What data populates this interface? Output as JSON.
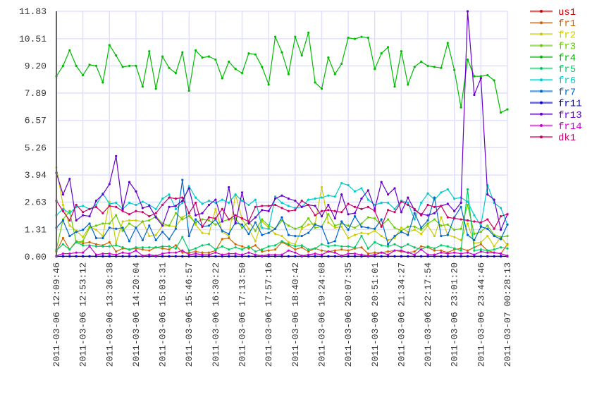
{
  "chart_data": {
    "type": "line",
    "title": "",
    "xlabel": "",
    "ylabel": "",
    "ylim": [
      0,
      11.83
    ],
    "yticks": [
      "0.00",
      "1.31",
      "2.63",
      "3.94",
      "5.26",
      "6.57",
      "7.89",
      "9.20",
      "10.51",
      "11.83"
    ],
    "xticks": [
      "2011-03-06 12:09:46",
      "2011-03-06 12:53:12",
      "2011-03-06 13:36:38",
      "2011-03-06 14:20:04",
      "2011-03-06 15:03:31",
      "2011-03-06 15:46:57",
      "2011-03-06 16:30:22",
      "2011-03-06 17:13:50",
      "2011-03-06 17:57:16",
      "2011-03-06 18:40:42",
      "2011-03-06 19:24:08",
      "2011-03-06 20:07:35",
      "2011-03-06 20:51:01",
      "2011-03-06 21:34:27",
      "2011-03-06 22:17:54",
      "2011-03-06 23:01:20",
      "2011-03-06 23:44:46",
      "2011-03-07 00:28:13"
    ],
    "points_per_tick_interval": 4,
    "grid": true,
    "legend_position": "right",
    "series": [
      {
        "name": "us1",
        "color": "#cc0000",
        "values": [
          0.02,
          0.02,
          0.02,
          0.02,
          0.02,
          0.02,
          0.02,
          0.02,
          0.02,
          0.02,
          0.02,
          0.02,
          0.02,
          0.02,
          0.02,
          0.02,
          0.02,
          0.02,
          0.02,
          0.02,
          0.02,
          0.02,
          0.02,
          0.02,
          0.02,
          0.02,
          0.02,
          0.02,
          0.02,
          0.02,
          0.02,
          0.02,
          0.02,
          0.02,
          0.02,
          0.02,
          0.02,
          0.02,
          0.02,
          0.02,
          0.02,
          0.02,
          0.02,
          0.02,
          0.02,
          0.02,
          0.02,
          0.02,
          0.02,
          0.02,
          0.02,
          0.02,
          0.02,
          0.02,
          0.02,
          0.02,
          0.02,
          0.02,
          0.02,
          0.02,
          0.02,
          0.02,
          0.02,
          0.02,
          0.02,
          0.02,
          0.02,
          0.02,
          0.02
        ]
      },
      {
        "name": "fr1",
        "color": "#cc6600",
        "values": [
          0.25,
          0.9,
          0.35,
          0.75,
          0.65,
          0.7,
          0.6,
          0.55,
          0.7,
          0.25,
          0.4,
          0.35,
          0.4,
          0.35,
          0.3,
          0.45,
          0.4,
          0.35,
          0.55,
          0.2,
          0.2,
          0.25,
          0.2,
          0.2,
          0.3,
          0.85,
          0.9,
          0.6,
          0.5,
          0.4,
          0.55,
          0.25,
          0.3,
          0.35,
          0.7,
          0.55,
          0.35,
          0.45,
          0.25,
          0.4,
          0.3,
          0.25,
          0.3,
          0.35,
          0.3,
          0.4,
          0.45,
          0.15,
          0.2,
          0.2,
          0.25,
          0.3,
          0.25,
          0.2,
          0.25,
          0.5,
          0.45,
          0.3,
          0.3,
          0.2,
          0.35,
          0.4,
          0.3,
          0.45,
          0.6,
          0.3,
          0.2,
          0.15,
          0.6
        ]
      },
      {
        "name": "fr2",
        "color": "#cccc00",
        "values": [
          4.3,
          2.5,
          1.5,
          1.25,
          0.95,
          1.45,
          1.3,
          1.0,
          2.65,
          0.65,
          1.7,
          1.75,
          1.75,
          1.7,
          1.0,
          1.05,
          1.5,
          1.5,
          1.45,
          1.9,
          2.1,
          1.55,
          1.15,
          1.1,
          2.3,
          1.2,
          1.0,
          3.0,
          1.8,
          1.35,
          0.75,
          1.7,
          1.4,
          1.1,
          1.0,
          0.7,
          0.6,
          1.35,
          1.55,
          1.6,
          3.35,
          1.65,
          1.4,
          1.45,
          0.9,
          1.05,
          1.15,
          1.1,
          1.25,
          1.0,
          0.8,
          0.9,
          1.4,
          1.2,
          1.3,
          1.1,
          1.5,
          1.0,
          1.9,
          1.05,
          0.95,
          0.8,
          1.6,
          0.65,
          0.7,
          1.0,
          0.5,
          0.95,
          0.55
        ]
      },
      {
        "name": "fr3",
        "color": "#66cc00",
        "values": [
          0.35,
          1.8,
          2.2,
          0.7,
          0.75,
          1.4,
          1.5,
          1.6,
          1.6,
          2.0,
          1.25,
          1.6,
          1.4,
          1.7,
          1.75,
          1.95,
          1.6,
          1.5,
          2.1,
          1.8,
          1.95,
          1.65,
          1.8,
          1.75,
          1.55,
          1.7,
          1.8,
          1.85,
          1.4,
          1.7,
          1.25,
          1.8,
          1.5,
          1.35,
          1.75,
          1.5,
          1.35,
          1.45,
          1.85,
          1.4,
          1.45,
          2.05,
          1.5,
          1.6,
          1.5,
          1.4,
          1.6,
          1.9,
          1.85,
          1.5,
          1.8,
          1.4,
          1.25,
          1.45,
          1.45,
          1.3,
          1.6,
          1.8,
          1.5,
          1.55,
          1.3,
          1.35,
          2.5,
          1.1,
          1.2,
          1.5,
          1.05,
          0.95,
          1.0
        ]
      },
      {
        "name": "fr4",
        "color": "#00bb00",
        "values": [
          8.7,
          9.2,
          9.95,
          9.2,
          8.75,
          9.25,
          9.2,
          8.4,
          10.2,
          9.7,
          9.15,
          9.2,
          9.2,
          8.2,
          9.9,
          8.1,
          9.65,
          9.1,
          8.85,
          9.85,
          8.0,
          9.95,
          9.6,
          9.65,
          9.5,
          8.6,
          9.4,
          9.05,
          8.85,
          9.8,
          9.75,
          9.15,
          8.3,
          10.6,
          9.85,
          8.8,
          10.6,
          9.7,
          10.8,
          8.4,
          8.1,
          9.6,
          8.8,
          9.3,
          10.55,
          10.5,
          10.6,
          10.55,
          9.05,
          9.8,
          10.1,
          8.2,
          9.9,
          8.3,
          9.15,
          9.4,
          9.2,
          9.15,
          9.1,
          10.3,
          9.0,
          7.2,
          9.5,
          8.7,
          8.7,
          8.75,
          8.5,
          6.95,
          7.1
        ]
      },
      {
        "name": "fr5",
        "color": "#00cc66",
        "values": [
          0.3,
          0.6,
          0.35,
          0.7,
          0.55,
          0.55,
          0.5,
          0.5,
          0.5,
          0.55,
          0.45,
          0.35,
          0.45,
          0.45,
          0.45,
          0.45,
          0.5,
          0.5,
          0.4,
          0.95,
          0.3,
          0.4,
          0.55,
          0.6,
          0.35,
          0.5,
          0.35,
          0.45,
          0.35,
          0.5,
          0.25,
          0.35,
          0.5,
          0.55,
          0.75,
          0.6,
          0.5,
          0.55,
          0.35,
          0.4,
          0.6,
          0.5,
          0.55,
          0.5,
          0.5,
          0.45,
          1.0,
          0.4,
          0.7,
          0.55,
          0.5,
          0.6,
          0.45,
          0.6,
          0.45,
          0.35,
          0.5,
          0.4,
          0.55,
          0.5,
          0.4,
          0.3,
          3.25,
          0.3,
          0.35,
          0.3,
          0.35,
          0.45,
          0.4
        ]
      },
      {
        "name": "fr6",
        "color": "#00cccc",
        "values": [
          2.0,
          2.3,
          2.1,
          2.4,
          2.45,
          2.3,
          2.5,
          3.05,
          2.55,
          2.6,
          2.3,
          2.6,
          2.5,
          2.65,
          2.5,
          2.3,
          2.8,
          3.0,
          2.3,
          2.6,
          3.4,
          2.85,
          2.55,
          2.7,
          2.6,
          2.75,
          2.6,
          3.0,
          2.7,
          2.5,
          2.75,
          1.4,
          1.35,
          2.9,
          2.6,
          2.45,
          2.35,
          2.4,
          2.75,
          2.8,
          2.85,
          2.95,
          2.9,
          3.55,
          3.45,
          3.15,
          3.3,
          2.75,
          2.5,
          2.6,
          2.6,
          2.3,
          2.7,
          2.6,
          1.8,
          2.6,
          3.05,
          2.75,
          3.1,
          3.25,
          2.8,
          2.85,
          2.65,
          2.0,
          1.5,
          3.45,
          2.6,
          2.35,
          1.55
        ]
      },
      {
        "name": "fr7",
        "color": "#0066cc",
        "values": [
          1.4,
          1.75,
          1.0,
          1.2,
          1.3,
          1.6,
          0.9,
          0.9,
          1.4,
          1.35,
          1.4,
          0.75,
          1.4,
          0.8,
          1.5,
          0.8,
          1.2,
          0.85,
          1.35,
          3.7,
          1.0,
          1.8,
          1.45,
          1.5,
          1.8,
          1.25,
          1.1,
          1.65,
          1.55,
          1.1,
          1.65,
          1.05,
          1.15,
          1.35,
          1.9,
          1.05,
          1.0,
          1.0,
          1.15,
          1.55,
          1.45,
          0.65,
          0.75,
          1.7,
          1.3,
          1.95,
          1.45,
          1.4,
          1.35,
          1.8,
          0.6,
          1.0,
          1.2,
          1.05,
          2.1,
          1.4,
          1.75,
          2.85,
          1.0,
          1.05,
          1.9,
          2.4,
          1.05,
          0.8,
          1.45,
          1.35,
          1.0,
          0.85,
          1.55
        ]
      },
      {
        "name": "fr11",
        "color": "#0000cc",
        "values": [
          0.02,
          0.02,
          0.02,
          0.02,
          0.02,
          0.02,
          0.02,
          0.02,
          0.02,
          0.02,
          0.02,
          0.02,
          0.02,
          0.02,
          0.02,
          0.02,
          0.02,
          0.02,
          0.02,
          0.02,
          0.02,
          0.02,
          0.02,
          0.02,
          0.02,
          0.02,
          0.02,
          0.02,
          0.02,
          0.02,
          0.02,
          0.02,
          0.02,
          0.02,
          0.02,
          0.02,
          0.02,
          0.02,
          0.02,
          0.02,
          0.02,
          0.02,
          0.02,
          0.02,
          0.02,
          0.02,
          0.02,
          0.02,
          0.02,
          0.02,
          0.02,
          0.02,
          0.02,
          0.02,
          0.02,
          0.02,
          0.02,
          0.02,
          0.02,
          0.02,
          0.02,
          0.02,
          0.02,
          0.02,
          0.02,
          0.02,
          0.02,
          0.02,
          0.02
        ]
      },
      {
        "name": "fr13",
        "color": "#6600cc",
        "values": [
          4.04,
          3.0,
          3.75,
          1.75,
          2.0,
          1.95,
          2.7,
          3.0,
          3.5,
          4.85,
          2.3,
          3.6,
          3.15,
          2.35,
          2.45,
          1.9,
          1.5,
          2.4,
          2.45,
          2.7,
          3.3,
          2.0,
          2.1,
          2.5,
          2.75,
          1.7,
          3.35,
          1.6,
          3.1,
          1.6,
          1.9,
          2.25,
          2.2,
          2.8,
          2.95,
          2.8,
          2.7,
          2.4,
          2.5,
          2.45,
          1.95,
          2.5,
          1.85,
          3.0,
          2.05,
          2.1,
          2.8,
          3.2,
          2.3,
          3.6,
          3.0,
          3.3,
          2.15,
          2.85,
          2.25,
          2.05,
          2.0,
          2.1,
          2.45,
          2.55,
          2.2,
          2.6,
          11.83,
          7.8,
          8.6,
          3.0,
          2.75,
          1.3,
          2.05
        ]
      },
      {
        "name": "fr14",
        "color": "#cc00cc",
        "values": [
          0.05,
          0.15,
          0.15,
          0.2,
          0.2,
          0.5,
          0.1,
          0.15,
          0.15,
          0.1,
          0.2,
          0.15,
          0.3,
          0.05,
          0.1,
          0.05,
          0.15,
          0.2,
          0.2,
          0.3,
          0.1,
          0.15,
          0.1,
          0.1,
          0.2,
          0.1,
          0.15,
          0.15,
          0.1,
          0.2,
          0.1,
          0.05,
          0.1,
          0.1,
          0.1,
          0.3,
          0.2,
          0.05,
          0.1,
          0.15,
          0.1,
          0.25,
          0.2,
          0.05,
          0.15,
          0.15,
          0.1,
          0.05,
          0.1,
          0.2,
          0.1,
          0.3,
          0.3,
          0.2,
          0.1,
          0.35,
          0.1,
          0.1,
          0.2,
          0.15,
          0.2,
          0.15,
          0.2,
          0.1,
          0.25,
          0.2,
          0.2,
          0.15,
          0.05
        ]
      },
      {
        "name": "dk1",
        "color": "#cc0066",
        "values": [
          2.7,
          2.2,
          1.75,
          2.5,
          2.15,
          2.3,
          2.4,
          2.1,
          2.45,
          2.4,
          2.2,
          2.05,
          2.2,
          2.15,
          1.95,
          2.1,
          2.5,
          2.85,
          2.8,
          2.85,
          2.1,
          2.6,
          1.45,
          1.9,
          1.85,
          2.3,
          1.8,
          2.0,
          1.85,
          1.7,
          2.4,
          2.45,
          2.45,
          2.5,
          2.35,
          2.2,
          2.25,
          2.7,
          2.5,
          2.0,
          2.2,
          2.25,
          2.2,
          2.15,
          2.55,
          2.4,
          2.3,
          2.4,
          2.2,
          1.45,
          2.25,
          2.15,
          2.65,
          2.5,
          2.3,
          2.0,
          2.5,
          2.4,
          2.45,
          1.9,
          1.85,
          1.8,
          1.75,
          1.7,
          1.65,
          1.8,
          1.35,
          1.95,
          2.05
        ]
      }
    ]
  }
}
